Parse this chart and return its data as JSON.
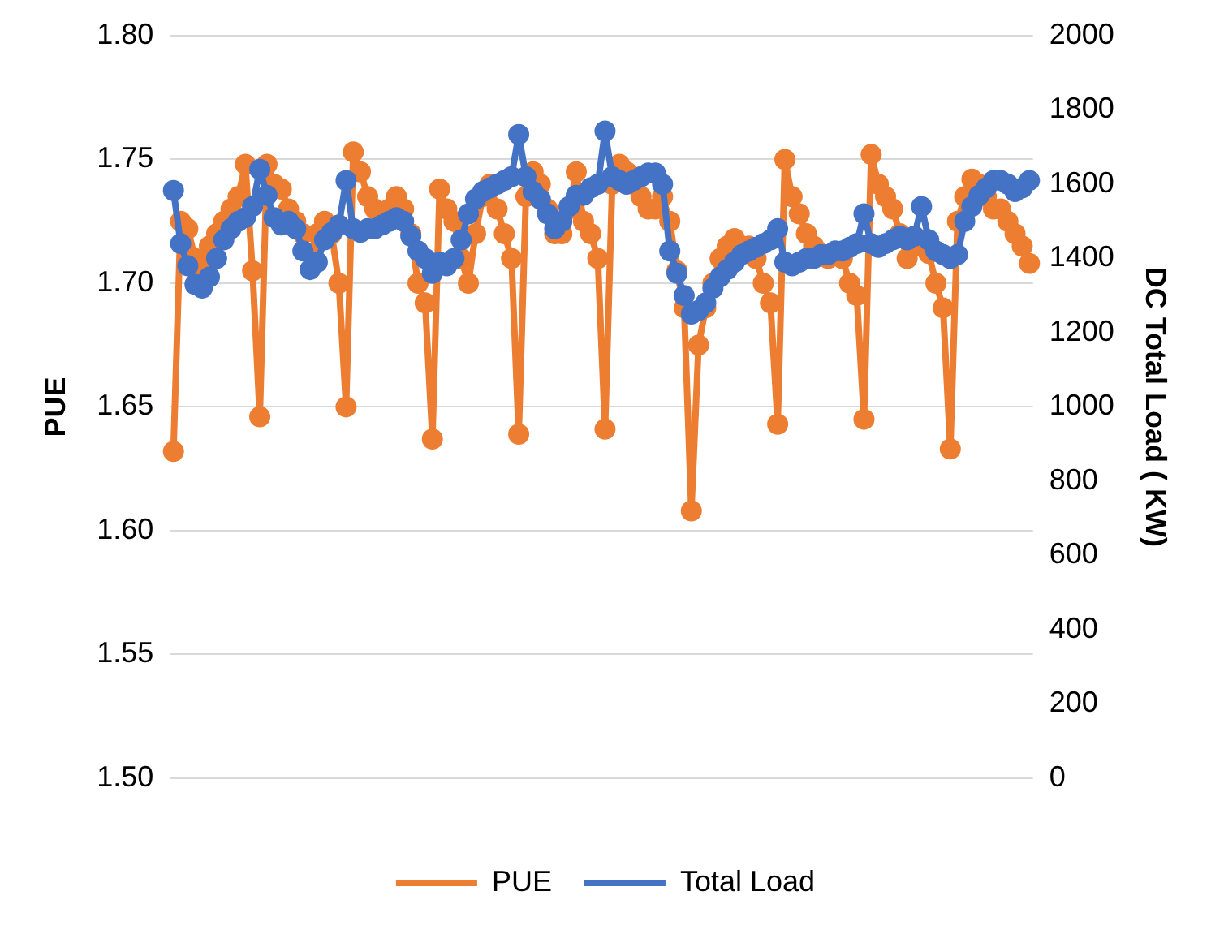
{
  "chart_data": {
    "type": "line",
    "categories": [
      null,
      null,
      null,
      null,
      null,
      null,
      null,
      null,
      null,
      null,
      null,
      null,
      null,
      null,
      null,
      null,
      null,
      null,
      null,
      null,
      null,
      null,
      null,
      null,
      null,
      null,
      null,
      null,
      null,
      null,
      null,
      null,
      null,
      null,
      null,
      null,
      null,
      null,
      null,
      null,
      null,
      null,
      null,
      null,
      null,
      null,
      null,
      null,
      null,
      null,
      null,
      null,
      null,
      null,
      null,
      null,
      null,
      null,
      null,
      null,
      null,
      null,
      null,
      null,
      null,
      null,
      null,
      null,
      null,
      null,
      null,
      null,
      null,
      null,
      null,
      null,
      null,
      null,
      null,
      null,
      null,
      null,
      null,
      null,
      null,
      null,
      null,
      null,
      null,
      null,
      null,
      null,
      null,
      null,
      null,
      null,
      null,
      null,
      null,
      null,
      null,
      null,
      null,
      null,
      null,
      null,
      null,
      null,
      null,
      null,
      null,
      null,
      null,
      null,
      null,
      null,
      null,
      null,
      null,
      null
    ],
    "ylabel": "PUE",
    "y2label": "DC Total Load ( KW)",
    "ylim": [
      1.5,
      1.8
    ],
    "yticks": [
      {
        "value": 1.5,
        "label": "1.50"
      },
      {
        "value": 1.55,
        "label": "1.55"
      },
      {
        "value": 1.6,
        "label": "1.60"
      },
      {
        "value": 1.65,
        "label": "1.65"
      },
      {
        "value": 1.7,
        "label": "1.70"
      },
      {
        "value": 1.75,
        "label": "1.75"
      },
      {
        "value": 1.8,
        "label": "1.80"
      }
    ],
    "y2lim": [
      0,
      2000
    ],
    "y2ticks": [
      0,
      200,
      400,
      600,
      800,
      1000,
      1200,
      1400,
      1600,
      1800,
      2000
    ],
    "grid": "y",
    "legend": "bottom",
    "marker": "circle",
    "series": [
      {
        "name": "PUE",
        "color": "#ed7d31",
        "values": [
          1.632,
          1.725,
          1.722,
          1.71,
          1.705,
          1.715,
          1.72,
          1.725,
          1.73,
          1.735,
          1.748,
          1.705,
          1.646,
          1.748,
          1.74,
          1.738,
          1.73,
          1.725,
          1.72,
          1.712,
          1.72,
          1.725,
          1.72,
          1.7,
          1.65,
          1.753,
          1.745,
          1.735,
          1.73,
          1.728,
          1.73,
          1.735,
          1.73,
          1.72,
          1.7,
          1.692,
          1.637,
          1.738,
          1.73,
          1.725,
          1.71,
          1.7,
          1.72,
          1.735,
          1.74,
          1.73,
          1.72,
          1.71,
          1.639,
          1.735,
          1.745,
          1.74,
          1.73,
          1.72,
          1.72,
          1.73,
          1.745,
          1.725,
          1.72,
          1.71,
          1.641,
          1.74,
          1.748,
          1.745,
          1.74,
          1.735,
          1.73,
          1.73,
          1.735,
          1.725,
          1.705,
          1.69,
          1.608,
          1.675,
          1.69,
          1.7,
          1.71,
          1.715,
          1.718,
          1.715,
          1.715,
          1.71,
          1.7,
          1.692,
          1.643,
          1.75,
          1.735,
          1.728,
          1.72,
          1.715,
          1.712,
          1.71,
          1.712,
          1.71,
          1.7,
          1.695,
          1.645,
          1.752,
          1.74,
          1.735,
          1.73,
          1.72,
          1.71,
          1.715,
          1.715,
          1.712,
          1.7,
          1.69,
          1.633,
          1.725,
          1.735,
          1.742,
          1.74,
          1.735,
          1.73,
          1.73,
          1.725,
          1.72,
          1.715,
          1.708
        ]
      },
      {
        "name": "Total Load",
        "color": "#4472c4",
        "axis": "y2",
        "values": [
          1583,
          1440,
          1380,
          1330,
          1320,
          1350,
          1400,
          1450,
          1480,
          1500,
          1510,
          1540,
          1640,
          1570,
          1510,
          1490,
          1500,
          1480,
          1420,
          1370,
          1390,
          1450,
          1470,
          1490,
          1610,
          1480,
          1470,
          1480,
          1480,
          1490,
          1500,
          1510,
          1500,
          1460,
          1420,
          1400,
          1360,
          1390,
          1380,
          1400,
          1450,
          1520,
          1560,
          1580,
          1590,
          1600,
          1610,
          1620,
          1734,
          1620,
          1580,
          1560,
          1520,
          1480,
          1500,
          1540,
          1570,
          1570,
          1590,
          1600,
          1743,
          1620,
          1610,
          1600,
          1610,
          1620,
          1630,
          1630,
          1600,
          1420,
          1360,
          1300,
          1250,
          1260,
          1280,
          1320,
          1350,
          1370,
          1390,
          1410,
          1420,
          1430,
          1440,
          1450,
          1480,
          1390,
          1380,
          1390,
          1400,
          1400,
          1410,
          1410,
          1420,
          1420,
          1430,
          1440,
          1520,
          1440,
          1430,
          1440,
          1450,
          1460,
          1450,
          1460,
          1540,
          1450,
          1420,
          1410,
          1400,
          1410,
          1500,
          1540,
          1570,
          1590,
          1610,
          1610,
          1600,
          1580,
          1590,
          1610
        ]
      }
    ]
  }
}
